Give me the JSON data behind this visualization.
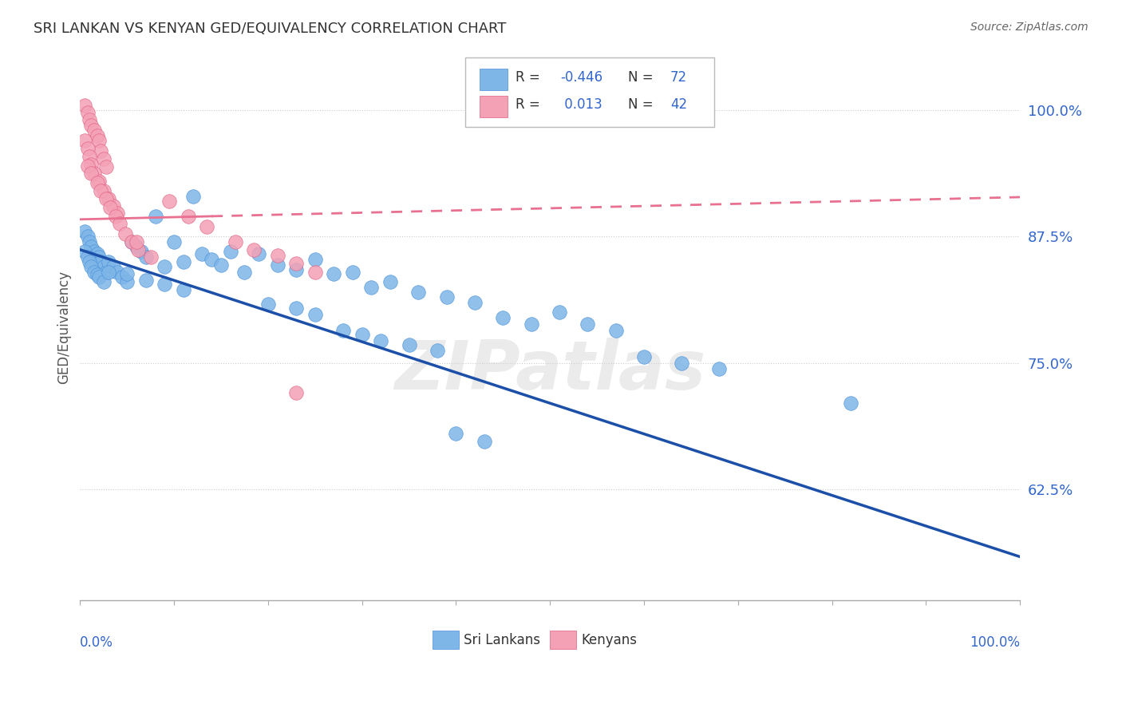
{
  "title": "SRI LANKAN VS KENYAN GED/EQUIVALENCY CORRELATION CHART",
  "source": "Source: ZipAtlas.com",
  "ylabel": "GED/Equivalency",
  "yticks": [
    0.625,
    0.75,
    0.875,
    1.0
  ],
  "ytick_labels": [
    "62.5%",
    "75.0%",
    "87.5%",
    "100.0%"
  ],
  "xlim": [
    0.0,
    1.0
  ],
  "ylim": [
    0.515,
    1.055
  ],
  "sri_lankan_color": "#7EB6E8",
  "sri_lankan_edge": "#4A90D9",
  "kenyan_color": "#F4A0B5",
  "kenyan_edge": "#E06080",
  "blue_line_color": "#1B4FA8",
  "pink_line_color": "#E87090",
  "watermark": "ZIPatlas",
  "blue_line_y_start": 0.862,
  "blue_line_y_end": 0.558,
  "pink_line_solid_end_x": 0.14,
  "pink_line_y_start": 0.892,
  "pink_line_y_end": 0.914,
  "sri_lankan_x": [
    0.005,
    0.008,
    0.01,
    0.012,
    0.015,
    0.018,
    0.02,
    0.022,
    0.025,
    0.028,
    0.005,
    0.008,
    0.01,
    0.012,
    0.015,
    0.018,
    0.02,
    0.025,
    0.03,
    0.035,
    0.04,
    0.045,
    0.05,
    0.055,
    0.06,
    0.065,
    0.07,
    0.08,
    0.09,
    0.1,
    0.11,
    0.12,
    0.13,
    0.14,
    0.15,
    0.16,
    0.175,
    0.19,
    0.21,
    0.23,
    0.25,
    0.27,
    0.29,
    0.31,
    0.33,
    0.36,
    0.39,
    0.42,
    0.45,
    0.48,
    0.51,
    0.54,
    0.57,
    0.6,
    0.64,
    0.68,
    0.82,
    0.03,
    0.05,
    0.07,
    0.09,
    0.11,
    0.2,
    0.23,
    0.25,
    0.28,
    0.3,
    0.32,
    0.35,
    0.38,
    0.4,
    0.43
  ],
  "sri_lankan_y": [
    0.88,
    0.875,
    0.87,
    0.865,
    0.86,
    0.858,
    0.855,
    0.85,
    0.845,
    0.84,
    0.86,
    0.855,
    0.85,
    0.845,
    0.84,
    0.837,
    0.835,
    0.83,
    0.85,
    0.845,
    0.84,
    0.835,
    0.83,
    0.87,
    0.865,
    0.86,
    0.855,
    0.895,
    0.845,
    0.87,
    0.85,
    0.915,
    0.858,
    0.852,
    0.847,
    0.86,
    0.84,
    0.858,
    0.847,
    0.842,
    0.852,
    0.838,
    0.84,
    0.825,
    0.83,
    0.82,
    0.815,
    0.81,
    0.795,
    0.788,
    0.8,
    0.788,
    0.782,
    0.756,
    0.75,
    0.744,
    0.71,
    0.84,
    0.838,
    0.832,
    0.828,
    0.822,
    0.808,
    0.804,
    0.798,
    0.782,
    0.778,
    0.772,
    0.768,
    0.762,
    0.68,
    0.672
  ],
  "kenyan_x": [
    0.005,
    0.008,
    0.01,
    0.012,
    0.015,
    0.018,
    0.02,
    0.022,
    0.025,
    0.028,
    0.005,
    0.008,
    0.01,
    0.012,
    0.015,
    0.02,
    0.025,
    0.03,
    0.035,
    0.04,
    0.008,
    0.012,
    0.018,
    0.022,
    0.028,
    0.032,
    0.038,
    0.042,
    0.048,
    0.055,
    0.062,
    0.075,
    0.095,
    0.115,
    0.135,
    0.165,
    0.185,
    0.21,
    0.23,
    0.25,
    0.06,
    0.23
  ],
  "kenyan_y": [
    1.005,
    0.998,
    0.991,
    0.985,
    0.98,
    0.975,
    0.97,
    0.96,
    0.952,
    0.944,
    0.97,
    0.962,
    0.954,
    0.946,
    0.938,
    0.93,
    0.92,
    0.912,
    0.905,
    0.898,
    0.945,
    0.938,
    0.928,
    0.92,
    0.912,
    0.904,
    0.895,
    0.888,
    0.878,
    0.87,
    0.862,
    0.855,
    0.91,
    0.895,
    0.885,
    0.87,
    0.862,
    0.856,
    0.848,
    0.84,
    0.87,
    0.72
  ]
}
